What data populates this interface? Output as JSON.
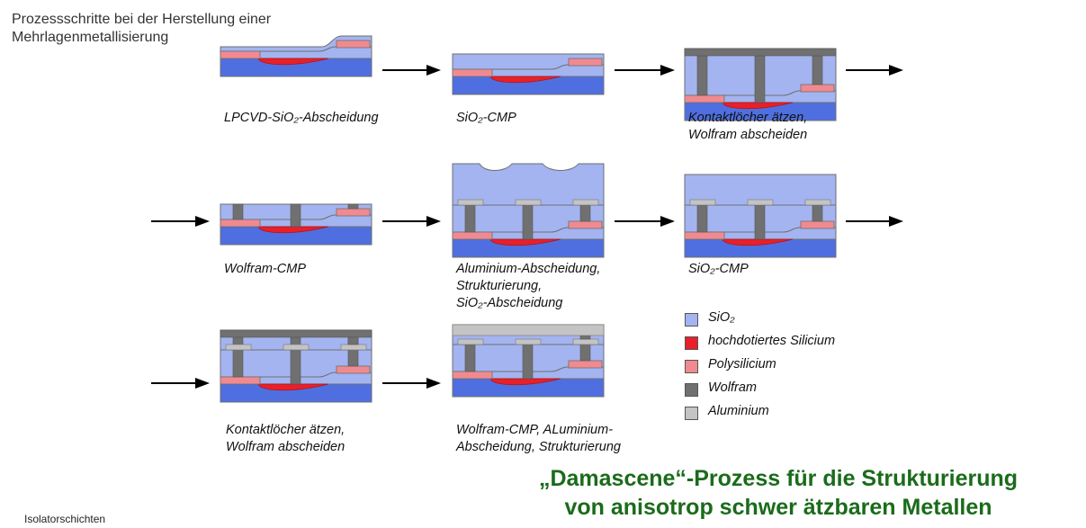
{
  "page": {
    "title_line1": "Prozessschritte bei der Herstellung einer",
    "title_line2": "Mehrlagenmetallisierung",
    "footer": "Isolatorschichten",
    "headline_line1": "„Damascene“-Prozess für die Strukturierung",
    "headline_line2": "von anisotrop schwer ätzbaren Metallen"
  },
  "colors": {
    "sio2": "#a3b4f0",
    "sio2_dark": "#8da0e6",
    "substrate": "#4f6fe0",
    "silicon": "#e8202a",
    "poly": "#f08a90",
    "wolfram": "#707070",
    "aluminium": "#c4c4c4",
    "outline": "#6f6f6f",
    "headline": "#1b6b1b"
  },
  "steps": [
    {
      "name": "step-lpcvd-sio2",
      "lines": [
        "LPCVD-SiO₂-Abscheidung"
      ]
    },
    {
      "name": "step-sio2-cmp-1",
      "lines": [
        "SiO₂-CMP"
      ]
    },
    {
      "name": "step-contact-holes-1",
      "lines": [
        "Kontaktlöcher ätzen,",
        "Wolfram abscheiden"
      ]
    },
    {
      "name": "step-wolfram-cmp",
      "lines": [
        "Wolfram-CMP"
      ]
    },
    {
      "name": "step-aluminium",
      "lines": [
        "Aluminium-Abscheidung,",
        "Strukturierung,",
        "SiO₂-Abscheidung"
      ]
    },
    {
      "name": "step-sio2-cmp-2",
      "lines": [
        "SiO₂-CMP"
      ]
    },
    {
      "name": "step-contact-holes-2",
      "lines": [
        "Kontaktlöcher ätzen,",
        "Wolfram abscheiden"
      ]
    },
    {
      "name": "step-wolfram-cmp-al",
      "lines": [
        "Wolfram-CMP, ALuminium-",
        "Abscheidung, Strukturierung"
      ]
    }
  ],
  "legend": [
    {
      "name": "legend-sio2",
      "label": "SiO₂",
      "color": "#a3b4f0"
    },
    {
      "name": "legend-silicon",
      "label": "hochdotiertes Silicium",
      "color": "#e8202a"
    },
    {
      "name": "legend-poly",
      "label": "Polysilicium",
      "color": "#f08a90"
    },
    {
      "name": "legend-wolfram",
      "label": "Wolfram",
      "color": "#707070"
    },
    {
      "name": "legend-aluminium",
      "label": "Aluminium",
      "color": "#c4c4c4"
    }
  ]
}
